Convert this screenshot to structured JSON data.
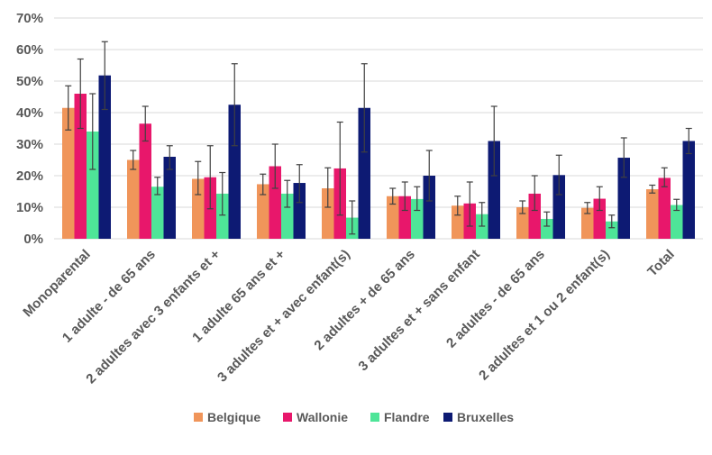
{
  "chart_data": {
    "type": "bar",
    "title": "",
    "xlabel": "",
    "ylabel": "",
    "ylim": [
      0,
      70
    ],
    "y_ticks": [
      "0%",
      "10%",
      "20%",
      "30%",
      "40%",
      "50%",
      "60%",
      "70%"
    ],
    "grid": "horizontal",
    "legend_position": "bottom",
    "categories": [
      "Monoparental",
      "1 adulte - de 65 ans",
      "2 adultes avec 3 enfants et +",
      "1 adulte 65 ans et +",
      "3 adultes et + avec enfant(s)",
      "2 adultes + de 65 ans",
      "3 adultes et + sans enfant",
      "2 adultes - de 65 ans",
      "2 adultes et 1 ou 2 enfant(s)",
      "Total"
    ],
    "series": [
      {
        "name": "Belgique",
        "color": "#f0955a",
        "values": [
          41.5,
          25,
          19,
          17.3,
          16,
          13.5,
          10.5,
          10,
          9.8,
          15.7
        ],
        "error_low": [
          34.5,
          22,
          14,
          14,
          10,
          11,
          7.5,
          8,
          8,
          14.5
        ],
        "error_high": [
          48.5,
          28,
          24.5,
          20.5,
          22.5,
          16,
          13.5,
          12,
          11.5,
          17
        ]
      },
      {
        "name": "Wallonie",
        "color": "#e8176b",
        "values": [
          46,
          36.5,
          19.5,
          23,
          22.3,
          13.5,
          11.2,
          14.3,
          12.7,
          19.3
        ],
        "error_low": [
          35,
          31,
          9.5,
          16,
          7.5,
          9,
          4,
          9,
          9,
          16.5
        ],
        "error_high": [
          57,
          42,
          29.5,
          30,
          37,
          18,
          18,
          20,
          16.5,
          22.5
        ]
      },
      {
        "name": "Flandre",
        "color": "#4ee598",
        "values": [
          34,
          16.5,
          14.3,
          14.3,
          6.7,
          12.6,
          7.8,
          6.3,
          5.5,
          10.7
        ],
        "error_low": [
          22,
          14,
          7.5,
          10,
          1.5,
          9,
          4,
          4,
          3.5,
          9
        ],
        "error_high": [
          46,
          19.5,
          21,
          18.5,
          12,
          16.5,
          11.5,
          8.5,
          7.5,
          12.5
        ]
      },
      {
        "name": "Bruxelles",
        "color": "#0d1a73",
        "values": [
          51.8,
          26,
          42.5,
          17.7,
          41.5,
          20,
          31,
          20.2,
          25.7,
          31
        ],
        "error_low": [
          41,
          22,
          29.5,
          11.5,
          27.5,
          12,
          20,
          14,
          19.5,
          27
        ],
        "error_high": [
          62.5,
          29.5,
          55.5,
          23.5,
          55.5,
          28,
          42,
          26.5,
          32,
          35
        ]
      }
    ]
  }
}
